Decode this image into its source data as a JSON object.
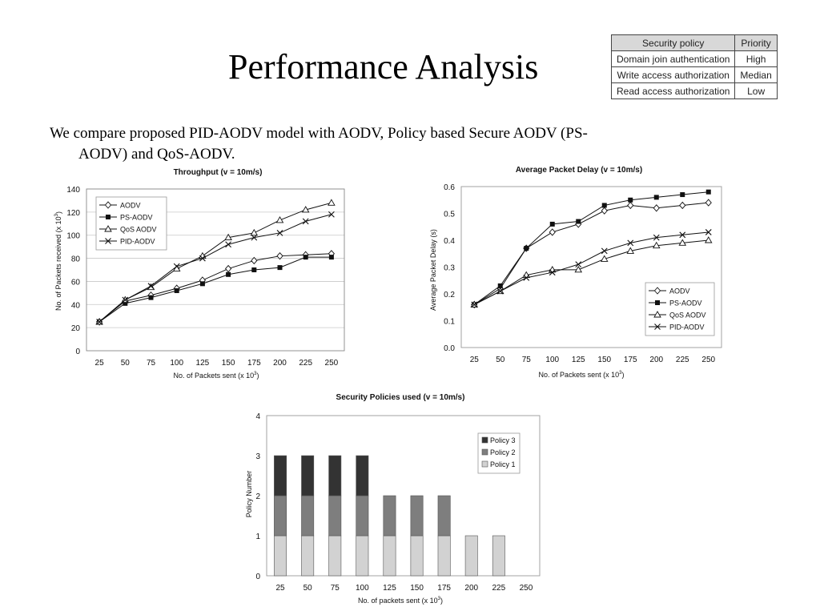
{
  "slide": {
    "title": "Performance Analysis",
    "bullet_line1": "We compare proposed PID-AODV model with AODV, Policy based Secure AODV (PS-",
    "bullet_line2": "AODV) and QoS-AODV."
  },
  "policy_table": {
    "headers": [
      "Security policy",
      "Priority"
    ],
    "rows": [
      [
        "Domain join authentication",
        "High"
      ],
      [
        "Write access authorization",
        "Median"
      ],
      [
        "Read access authorization",
        "Low"
      ]
    ]
  },
  "chart_data": [
    {
      "type": "line",
      "title": "Throughput (v = 10m/s)",
      "xlabel": "No. of Packets sent (x 10",
      "xlabel_sup": "3",
      "xlabel_end": ")",
      "ylabel": "No. of Packets received (x 10",
      "ylabel_sup": "3",
      "ylabel_end": ")",
      "categories": [
        "25",
        "50",
        "75",
        "100",
        "125",
        "150",
        "175",
        "200",
        "225",
        "250"
      ],
      "ylim": [
        0,
        140
      ],
      "yticks": [
        0,
        20,
        40,
        60,
        80,
        100,
        120,
        140
      ],
      "grid": true,
      "legend_position": "top-left",
      "series": [
        {
          "name": "AODV",
          "marker": "diamond",
          "values": [
            25,
            43,
            48,
            54,
            61,
            71,
            78,
            82,
            83,
            84
          ]
        },
        {
          "name": "PS-AODV",
          "marker": "square",
          "values": [
            25,
            41,
            46,
            52,
            58,
            66,
            70,
            72,
            81,
            81
          ]
        },
        {
          "name": "QoS AODV",
          "marker": "triangle",
          "values": [
            25,
            44,
            55,
            71,
            82,
            98,
            102,
            113,
            122,
            128
          ]
        },
        {
          "name": "PID-AODV",
          "marker": "x",
          "values": [
            25,
            44,
            56,
            73,
            80,
            92,
            98,
            102,
            112,
            118
          ]
        }
      ]
    },
    {
      "type": "line",
      "title": "Average Packet Delay (v = 10m/s)",
      "xlabel": "No. of Packets sent (x 10",
      "xlabel_sup": "3",
      "xlabel_end": ")",
      "ylabel": "Average Packet Delay (s)",
      "categories": [
        "25",
        "50",
        "75",
        "100",
        "125",
        "150",
        "175",
        "200",
        "225",
        "250"
      ],
      "ylim": [
        0,
        0.6
      ],
      "yticks": [
        0,
        0.1,
        0.2,
        0.3,
        0.4,
        0.5,
        0.6
      ],
      "grid": false,
      "legend_position": "bottom-right",
      "series": [
        {
          "name": "AODV",
          "marker": "diamond",
          "values": [
            0.16,
            0.22,
            0.37,
            0.43,
            0.46,
            0.51,
            0.53,
            0.52,
            0.53,
            0.54
          ]
        },
        {
          "name": "PS-AODV",
          "marker": "square",
          "values": [
            0.16,
            0.23,
            0.37,
            0.46,
            0.47,
            0.53,
            0.55,
            0.56,
            0.57,
            0.58
          ]
        },
        {
          "name": "QoS AODV",
          "marker": "triangle",
          "values": [
            0.16,
            0.21,
            0.27,
            0.29,
            0.29,
            0.33,
            0.36,
            0.38,
            0.39,
            0.4
          ]
        },
        {
          "name": "PID-AODV",
          "marker": "x",
          "values": [
            0.16,
            0.21,
            0.26,
            0.28,
            0.31,
            0.36,
            0.39,
            0.41,
            0.42,
            0.43
          ]
        }
      ]
    },
    {
      "type": "bar",
      "stacked": true,
      "title": "Security Policies used (v = 10m/s)",
      "xlabel": "No. of packets sent (x 10",
      "xlabel_sup": "3",
      "xlabel_end": ")",
      "ylabel": "Policy Number",
      "categories": [
        "25",
        "50",
        "75",
        "100",
        "125",
        "150",
        "175",
        "200",
        "225",
        "250"
      ],
      "ylim": [
        0,
        4
      ],
      "yticks": [
        0,
        1,
        2,
        3,
        4
      ],
      "grid": false,
      "legend_position": "top-right",
      "series": [
        {
          "name": "Policy 1",
          "color": "#d2d2d2",
          "values": [
            1,
            1,
            1,
            1,
            1,
            1,
            1,
            1,
            1,
            0
          ]
        },
        {
          "name": "Policy 2",
          "color": "#7e7e7e",
          "values": [
            1,
            1,
            1,
            1,
            1,
            1,
            1,
            0,
            0,
            0
          ]
        },
        {
          "name": "Policy 3",
          "color": "#333333",
          "values": [
            1,
            1,
            1,
            1,
            0,
            0,
            0,
            0,
            0,
            0
          ]
        }
      ]
    }
  ]
}
